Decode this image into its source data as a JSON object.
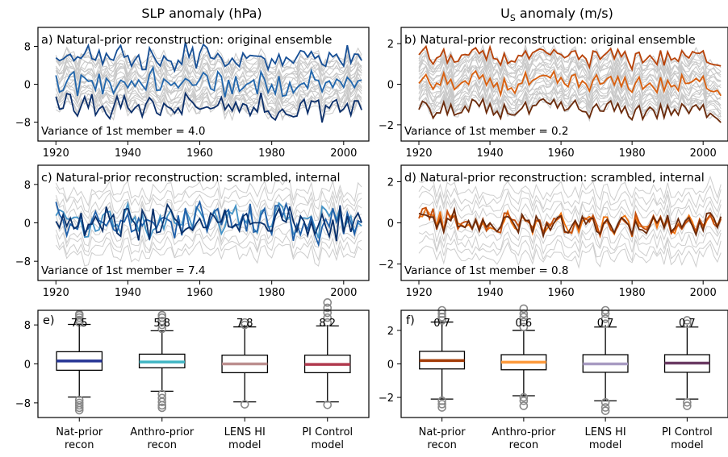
{
  "column_titles": {
    "left": "SLP anomaly (hPa)",
    "right_main": "U",
    "right_sub": "S",
    "right_rest": " anomaly (m/s)"
  },
  "chart_data": [
    {
      "panel": "a",
      "type": "line",
      "title": "a) Natural-prior reconstruction: original ensemble",
      "annotation": "Variance of 1st member = 4.0",
      "xlim": [
        1915,
        2007
      ],
      "ylim": [
        -12,
        12
      ],
      "xticks": [
        1920,
        1940,
        1960,
        1980,
        2000
      ],
      "yticks": [
        8,
        0,
        -8
      ],
      "ensemble": {
        "members_shown": 24,
        "color": "#c8c8c8",
        "spread": 5.5
      },
      "x_start": 1920,
      "x_end": 2005,
      "series": [
        {
          "color": "#2166ac",
          "offset": 0,
          "scale": 1.0
        },
        {
          "color": "#164f96",
          "offset": 5.5,
          "scale": 1.0
        },
        {
          "color": "#0b2f6b",
          "offset": -5.0,
          "scale": 1.0
        }
      ]
    },
    {
      "panel": "b",
      "type": "line",
      "title": "b) Natural-prior reconstruction: original ensemble",
      "annotation": "Variance of 1st member = 0.2",
      "xlim": [
        1915,
        2007
      ],
      "ylim": [
        -2.8,
        2.8
      ],
      "xticks": [
        1920,
        1940,
        1960,
        1980,
        2000
      ],
      "yticks": [
        2,
        0,
        -2
      ],
      "ensemble": {
        "members_shown": 24,
        "color": "#c8c8c8",
        "spread": 1.3
      },
      "x_start": 1920,
      "x_end": 2005,
      "series": [
        {
          "color": "#d95f0e",
          "offset": 0,
          "scale": 0.35
        },
        {
          "color": "#b84208",
          "offset": 1.3,
          "scale": 0.35
        },
        {
          "color": "#6b2a0a",
          "offset": -1.3,
          "scale": 0.35
        }
      ]
    },
    {
      "panel": "c",
      "type": "line",
      "title": "c) Natural-prior reconstruction: scrambled, internal",
      "annotation": "Variance of 1st member = 7.4",
      "xlim": [
        1915,
        2007
      ],
      "ylim": [
        -12,
        12
      ],
      "xticks": [
        1920,
        1940,
        1960,
        1980,
        2000
      ],
      "yticks": [
        8,
        0,
        -8
      ],
      "ensemble": {
        "members_shown": 10,
        "color": "#cdcdcd",
        "spread": 6.5
      },
      "x_start": 1920,
      "x_end": 2005,
      "series": [
        {
          "color": "#4292c6",
          "offset": 0,
          "scale": 1.4
        },
        {
          "color": "#1f5fa8",
          "offset": 0,
          "scale": 1.4
        },
        {
          "color": "#08306b",
          "offset": 0,
          "scale": 1.4
        }
      ]
    },
    {
      "panel": "d",
      "type": "line",
      "title": "d) Natural-prior reconstruction: scrambled, internal",
      "annotation": "Variance of 1st member = 0.8",
      "xlim": [
        1915,
        2007
      ],
      "ylim": [
        -2.8,
        2.8
      ],
      "xticks": [
        1920,
        1940,
        1960,
        1980,
        2000
      ],
      "yticks": [
        2,
        0,
        -2
      ],
      "ensemble": {
        "members_shown": 10,
        "color": "#cdcdcd",
        "spread": 1.6
      },
      "x_start": 1920,
      "x_end": 2005,
      "series": [
        {
          "color": "#f0730f",
          "offset": 0,
          "scale": 0.55
        },
        {
          "color": "#c44e0b",
          "offset": 0,
          "scale": 0.55
        },
        {
          "color": "#6b2a0a",
          "offset": 0,
          "scale": 0.55
        }
      ]
    },
    {
      "panel": "e",
      "type": "box",
      "title": "e)",
      "ylim": [
        -11,
        11
      ],
      "yticks": [
        8,
        0,
        -8
      ],
      "categories": [
        "Nat-prior\nrecon",
        "Anthro-prior\nrecon",
        "LENS HI\nmodel",
        "PI Control\nmodel"
      ],
      "value_labels": [
        "7.5",
        "5.8",
        "7.8",
        "8.2"
      ],
      "median_colors": [
        "#253494",
        "#41b6c4",
        "#bc8f8f",
        "#b03a4e"
      ],
      "boxes": [
        {
          "q1": -1.3,
          "median": 0.6,
          "q3": 2.5,
          "whislo": -6.8,
          "whishi": 8.1,
          "fliers_hi": [
            8.5,
            9.0,
            9.5,
            10.0,
            10.2
          ],
          "fliers_lo": [
            -7.4,
            -8.0,
            -8.5,
            -9.0,
            -9.5
          ]
        },
        {
          "q1": -0.8,
          "median": 0.4,
          "q3": 2.0,
          "whislo": -5.6,
          "whishi": 6.8,
          "fliers_hi": [
            7.2,
            8.0,
            8.8,
            9.5,
            10.0
          ],
          "fliers_lo": [
            -6.2,
            -7.0,
            -7.8,
            -8.5,
            -9.0
          ]
        },
        {
          "q1": -1.8,
          "median": 0.0,
          "q3": 1.8,
          "whislo": -7.8,
          "whishi": 7.6,
          "fliers_hi": [
            8.0,
            8.5
          ],
          "fliers_lo": [
            -8.3
          ]
        },
        {
          "q1": -1.8,
          "median": -0.1,
          "q3": 1.8,
          "whislo": -7.8,
          "whishi": 7.8,
          "fliers_hi": [
            8.5,
            9.5,
            10.5,
            11.5,
            12.6
          ],
          "fliers_lo": [
            -8.4
          ]
        }
      ]
    },
    {
      "panel": "f",
      "type": "box",
      "title": "f)",
      "ylim": [
        -3.2,
        3.2
      ],
      "yticks": [
        2,
        0,
        -2
      ],
      "categories": [
        "Nat-prior\nrecon",
        "Anthro-prior\nrecon",
        "LENS HI\nmodel",
        "PI Control\nmodel"
      ],
      "value_labels": [
        "0.7",
        "0.6",
        "0.7",
        "0.7"
      ],
      "median_colors": [
        "#a33c08",
        "#fd9a3c",
        "#a89bc2",
        "#6b3a63"
      ],
      "boxes": [
        {
          "q1": -0.3,
          "median": 0.2,
          "q3": 0.75,
          "whislo": -2.1,
          "whishi": 2.5,
          "fliers_hi": [
            2.6,
            2.8,
            3.0,
            3.2
          ],
          "fliers_lo": [
            -2.2,
            -2.4,
            -2.6
          ]
        },
        {
          "q1": -0.35,
          "median": 0.1,
          "q3": 0.55,
          "whislo": -1.9,
          "whishi": 2.0,
          "fliers_hi": [
            2.2,
            2.5,
            2.8,
            3.0,
            3.3
          ],
          "fliers_lo": [
            -2.0,
            -2.2,
            -2.5
          ]
        },
        {
          "q1": -0.5,
          "median": 0.0,
          "q3": 0.55,
          "whislo": -2.2,
          "whishi": 2.2,
          "fliers_hi": [
            2.4,
            2.7,
            3.0,
            3.2
          ],
          "fliers_lo": [
            -2.3,
            -2.6,
            -2.8
          ]
        },
        {
          "q1": -0.5,
          "median": 0.05,
          "q3": 0.55,
          "whislo": -2.1,
          "whishi": 2.2,
          "fliers_hi": [
            2.4,
            2.6
          ],
          "fliers_lo": [
            -2.3,
            -2.5
          ]
        }
      ]
    }
  ]
}
